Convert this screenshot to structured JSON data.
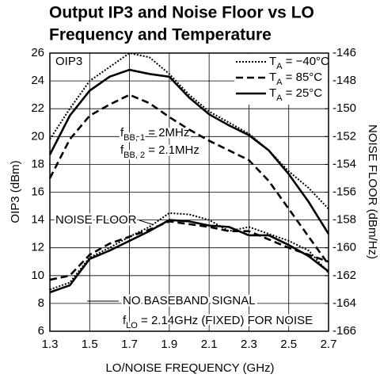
{
  "chart_data": {
    "type": "line",
    "title": [
      "Output IP3 and Noise Floor vs LO",
      "Frequency and Temperature"
    ],
    "xlabel": "LO/NOISE FREQUENCY (GHz)",
    "ylabel": "OIP3 (dBm)",
    "y2label": "NOISE FLOOR (dBm/Hz)",
    "annotations": [
      "OIP3",
      "NOISE FLOOR",
      "fBB, 1 = 2MHz",
      "fBB, 2 = 2.1MHz",
      "NO BASEBAND SIGNAL",
      "fLO = 2.14GHz (FIXED) FOR NOISE"
    ],
    "x": [
      1.3,
      1.4,
      1.5,
      1.6,
      1.7,
      1.8,
      1.9,
      2.0,
      2.1,
      2.2,
      2.3,
      2.4,
      2.5,
      2.6,
      2.7
    ],
    "xlim": [
      1.3,
      2.7
    ],
    "xticks": [
      1.3,
      1.5,
      1.7,
      1.9,
      2.1,
      2.3,
      2.5,
      2.7
    ],
    "ylim": [
      6,
      26
    ],
    "yticks": [
      6,
      8,
      10,
      12,
      14,
      16,
      18,
      20,
      22,
      24,
      26
    ],
    "y2lim": [
      -166,
      -146
    ],
    "y2ticks": [
      -166,
      -164,
      -162,
      -160,
      -158,
      -156,
      -154,
      -152,
      -150,
      -148,
      -146
    ],
    "grid": true,
    "legend": "upper right",
    "series": [
      {
        "name": "TA = −40°C",
        "color": "#000000",
        "style": "dotted",
        "values": [
          19.8,
          22,
          24,
          25,
          26,
          25.7,
          24.5,
          23,
          21.8,
          21,
          20.2,
          19,
          17.5,
          16.3,
          14.8
        ]
      },
      {
        "name": "TA = 85°C",
        "color": "#000000",
        "style": "dashed",
        "values": [
          17,
          19.8,
          21.5,
          22.3,
          23,
          22.4,
          21.4,
          20.5,
          19.7,
          19,
          18.3,
          16.8,
          14.8,
          12.8,
          10.8
        ]
      },
      {
        "name": "TA = 25°C",
        "color": "#000000",
        "style": "solid",
        "values": [
          18.7,
          21.5,
          23.3,
          24.3,
          24.8,
          24.5,
          24.3,
          22.8,
          21.6,
          20.8,
          20.1,
          19,
          17.3,
          15.3,
          13
        ]
      },
      {
        "color": "#000000",
        "style": "dotted",
        "axis": "y2",
        "values": [
          -163,
          -162.5,
          -160.7,
          -160,
          -159.2,
          -158.5,
          -157.5,
          -157.6,
          -158,
          -158.8,
          -158.5,
          -159,
          -159.5,
          -160.2,
          -161.8
        ]
      },
      {
        "color": "#000000",
        "style": "dashed",
        "axis": "y2",
        "values": [
          -162.3,
          -162,
          -160.5,
          -159.7,
          -159.2,
          -158.7,
          -158.1,
          -158.3,
          -158.5,
          -158.8,
          -158.8,
          -159.4,
          -160,
          -160.5,
          -161
        ]
      },
      {
        "color": "#000000",
        "style": "solid",
        "axis": "y2",
        "values": [
          -163.2,
          -162.7,
          -160.8,
          -160.2,
          -159.5,
          -158.8,
          -158,
          -158.1,
          -158.4,
          -158.5,
          -159.1,
          -159.1,
          -159.8,
          -160.6,
          -161.7
        ]
      }
    ]
  }
}
